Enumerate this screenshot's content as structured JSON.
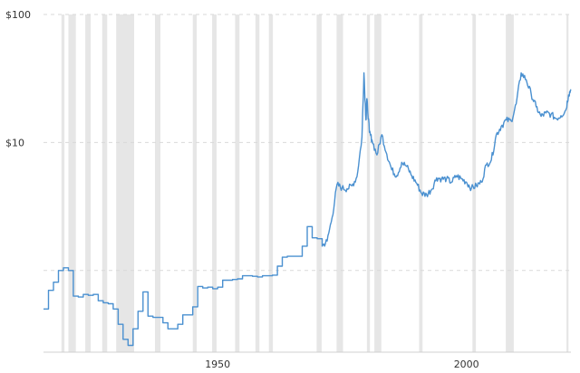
{
  "chart_data": {
    "type": "line",
    "title": "",
    "xlabel": "",
    "ylabel": "",
    "y_scale": "log",
    "xlim": [
      1915,
      2021
    ],
    "ylim": [
      0.23,
      100
    ],
    "y_ticks": [
      {
        "value": 10,
        "label": "$10"
      },
      {
        "value": 100,
        "label": "$100"
      }
    ],
    "y_gridlines": [
      1,
      10,
      100
    ],
    "x_ticks": [
      {
        "value": 1950,
        "label": "1950"
      },
      {
        "value": 2000,
        "label": "2000"
      }
    ],
    "grid": true,
    "legend": "none",
    "colors": {
      "line": "#4a90d0",
      "recession": "#e6e6e6",
      "grid": "#d9d9d9"
    },
    "recession_bands": [
      [
        1918.6,
        1919.2
      ],
      [
        1920.0,
        1921.5
      ],
      [
        1923.4,
        1924.5
      ],
      [
        1926.8,
        1927.8
      ],
      [
        1929.6,
        1933.2
      ],
      [
        1937.4,
        1938.5
      ],
      [
        1945.0,
        1945.8
      ],
      [
        1948.9,
        1949.8
      ],
      [
        1953.5,
        1954.4
      ],
      [
        1957.6,
        1958.4
      ],
      [
        1960.3,
        1961.1
      ],
      [
        1969.9,
        1970.9
      ],
      [
        1973.9,
        1975.2
      ],
      [
        1980.0,
        1980.6
      ],
      [
        1981.5,
        1982.9
      ],
      [
        1990.5,
        1991.2
      ],
      [
        2001.2,
        2001.9
      ],
      [
        2007.9,
        2009.5
      ],
      [
        2020.1,
        2020.5
      ]
    ],
    "series": [
      {
        "x": [
          1915,
          1916,
          1917,
          1918,
          1919,
          1920,
          1921,
          1922,
          1923,
          1924,
          1925,
          1926,
          1927,
          1928,
          1929,
          1930,
          1931,
          1932,
          1933,
          1934,
          1935,
          1936,
          1937,
          1938,
          1939,
          1940,
          1941,
          1942,
          1943,
          1944,
          1945,
          1946,
          1947,
          1948,
          1949,
          1950,
          1951,
          1952,
          1953,
          1954,
          1955,
          1956,
          1957,
          1958,
          1959,
          1960,
          1961,
          1962,
          1963,
          1964,
          1965,
          1966,
          1967,
          1968,
          1969,
          1970,
          1971,
          1972,
          1973,
          1974,
          1975,
          1976,
          1977,
          1978,
          1979,
          1979.4,
          1979.8,
          1980,
          1980.5,
          1981,
          1982,
          1983,
          1984,
          1985,
          1986,
          1987,
          1988,
          1989,
          1990,
          1991,
          1992,
          1993,
          1994,
          1995,
          1996,
          1997,
          1998,
          1999,
          2000,
          2001,
          2002,
          2003,
          2004,
          2005,
          2006,
          2007,
          2008,
          2009,
          2010,
          2011,
          2012,
          2013,
          2014,
          2015,
          2016,
          2017,
          2018,
          2019,
          2020,
          2020.5,
          2021
        ],
        "y": [
          0.5,
          0.7,
          0.81,
          1.0,
          1.05,
          1.0,
          0.63,
          0.62,
          0.65,
          0.64,
          0.65,
          0.58,
          0.56,
          0.55,
          0.5,
          0.38,
          0.29,
          0.26,
          0.35,
          0.48,
          0.68,
          0.44,
          0.43,
          0.43,
          0.39,
          0.35,
          0.35,
          0.38,
          0.45,
          0.45,
          0.52,
          0.75,
          0.73,
          0.74,
          0.72,
          0.74,
          0.84,
          0.84,
          0.85,
          0.86,
          0.91,
          0.91,
          0.9,
          0.89,
          0.91,
          0.91,
          0.92,
          1.08,
          1.27,
          1.29,
          1.29,
          1.29,
          1.55,
          2.2,
          1.8,
          1.77,
          1.55,
          1.7,
          2.6,
          4.7,
          4.4,
          4.35,
          4.6,
          5.4,
          11.0,
          35.0,
          15.0,
          22.0,
          12.0,
          10.5,
          8.0,
          11.5,
          8.1,
          6.1,
          5.5,
          7.0,
          6.5,
          5.5,
          4.8,
          4.0,
          3.9,
          4.3,
          5.3,
          5.2,
          5.2,
          4.9,
          5.5,
          5.2,
          4.9,
          4.4,
          4.6,
          4.9,
          6.7,
          7.3,
          11.5,
          13.4,
          15.0,
          14.7,
          20.0,
          35.0,
          31.0,
          24.0,
          19.0,
          16.0,
          17.0,
          16.6,
          15.4,
          16.2,
          18.0,
          23.5,
          26.0
        ]
      }
    ]
  }
}
